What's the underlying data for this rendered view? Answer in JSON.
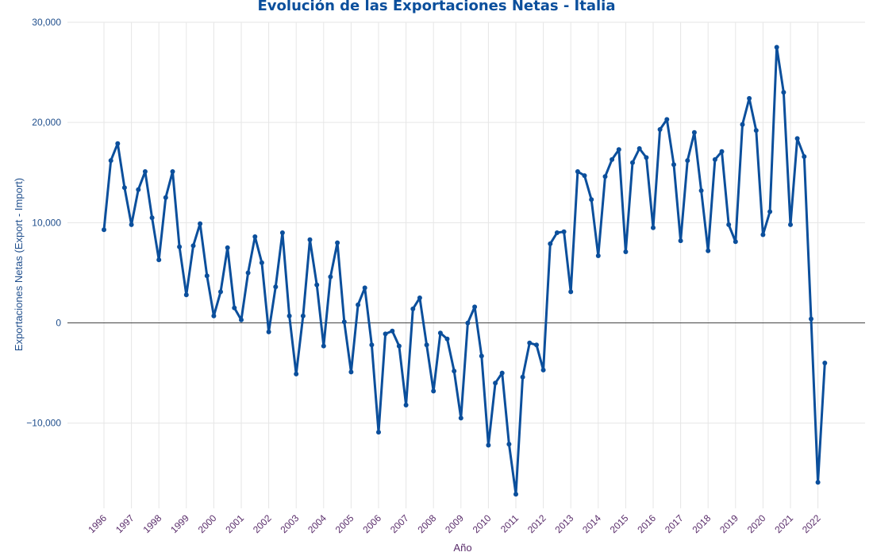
{
  "chart_data": {
    "type": "line",
    "title": "Evolución de las Exportaciones Netas - Italia",
    "xlabel": "Año",
    "ylabel": "Exportaciones Netas (Export - Import)",
    "x_start": "1996",
    "x_end": "2025",
    "ylim": [
      -18500,
      30000
    ],
    "yticks": [
      -10000,
      0,
      10000,
      20000,
      30000
    ],
    "ytick_labels": [
      "−10,000",
      "0",
      "10,000",
      "20,000",
      "30,000"
    ],
    "xticks": [
      "1996",
      "1997",
      "1998",
      "1999",
      "2000",
      "2001",
      "2002",
      "2003",
      "2004",
      "2005",
      "2006",
      "2007",
      "2008",
      "2009",
      "2010",
      "2011",
      "2012",
      "2013",
      "2014",
      "2015",
      "2016",
      "2017",
      "2018",
      "2019",
      "2020",
      "2021",
      "2022"
    ],
    "grid": true,
    "zero_line": true,
    "series": [
      {
        "color": "#0b4f9c",
        "x": [
          "1996-Q1",
          "1996-Q2",
          "1996-Q3",
          "1996-Q4",
          "1997-Q1",
          "1997-Q2",
          "1997-Q3",
          "1997-Q4",
          "1998-Q1",
          "1998-Q2",
          "1998-Q3",
          "1998-Q4",
          "1999-Q1",
          "1999-Q2",
          "1999-Q3",
          "1999-Q4",
          "2000-Q1",
          "2000-Q2",
          "2000-Q3",
          "2000-Q4",
          "2001-Q1",
          "2001-Q2",
          "2001-Q3",
          "2001-Q4",
          "2002-Q1",
          "2002-Q2",
          "2002-Q3",
          "2002-Q4",
          "2003-Q1",
          "2003-Q2",
          "2003-Q3",
          "2003-Q4",
          "2004-Q1",
          "2004-Q2",
          "2004-Q3",
          "2004-Q4",
          "2005-Q1",
          "2005-Q2",
          "2005-Q3",
          "2005-Q4",
          "2006-Q1",
          "2006-Q2",
          "2006-Q3",
          "2006-Q4",
          "2007-Q1",
          "2007-Q2",
          "2007-Q3",
          "2007-Q4",
          "2008-Q1",
          "2008-Q2",
          "2008-Q3",
          "2008-Q4",
          "2009-Q1",
          "2009-Q2",
          "2009-Q3",
          "2009-Q4",
          "2010-Q1",
          "2010-Q2",
          "2010-Q3",
          "2010-Q4",
          "2011-Q1",
          "2011-Q2",
          "2011-Q3",
          "2011-Q4",
          "2012-Q1",
          "2012-Q2",
          "2012-Q3",
          "2012-Q4",
          "2013-Q1",
          "2013-Q2",
          "2013-Q3",
          "2013-Q4",
          "2014-Q1",
          "2014-Q2",
          "2014-Q3",
          "2014-Q4",
          "2015-Q1",
          "2015-Q2",
          "2015-Q3",
          "2015-Q4",
          "2016-Q1",
          "2016-Q2",
          "2016-Q3",
          "2016-Q4",
          "2017-Q1",
          "2017-Q2",
          "2017-Q3",
          "2017-Q4",
          "2018-Q1",
          "2018-Q2",
          "2018-Q3",
          "2018-Q4",
          "2019-Q1",
          "2019-Q2",
          "2019-Q3",
          "2019-Q4",
          "2020-Q1",
          "2020-Q2",
          "2020-Q3",
          "2020-Q4",
          "2021-Q1",
          "2021-Q2",
          "2021-Q3",
          "2021-Q4",
          "2022-Q1",
          "2022-Q2"
        ],
        "values": [
          9300,
          16200,
          17900,
          13500,
          9800,
          13300,
          15100,
          10500,
          6300,
          12500,
          15100,
          7600,
          2800,
          7700,
          9900,
          4700,
          700,
          3100,
          7500,
          1500,
          300,
          5000,
          8600,
          6000,
          -900,
          3600,
          9000,
          700,
          -5100,
          700,
          8300,
          3800,
          -2300,
          4600,
          8000,
          100,
          -4900,
          1800,
          3500,
          -2200,
          -10900,
          -1100,
          -800,
          -2300,
          -8200,
          1400,
          2500,
          -2200,
          -6800,
          -1000,
          -1600,
          -4800,
          -9500,
          0,
          1600,
          -3300,
          -12200,
          -6000,
          -5000,
          -12100,
          -17100,
          -5400,
          -2000,
          -2200,
          -4700,
          7900,
          9000,
          9100,
          3100,
          15100,
          14700,
          12300,
          6700,
          14600,
          16300,
          17300,
          7100,
          16000,
          17400,
          16500,
          9500,
          19300,
          20300,
          15800,
          8200,
          16200,
          19000,
          13200,
          7200,
          16300,
          17100,
          9800,
          8100,
          19800,
          22400,
          19200,
          8800,
          11100,
          27500,
          23000,
          9800,
          18400,
          16600,
          400,
          -15900,
          -4000
        ]
      }
    ]
  }
}
